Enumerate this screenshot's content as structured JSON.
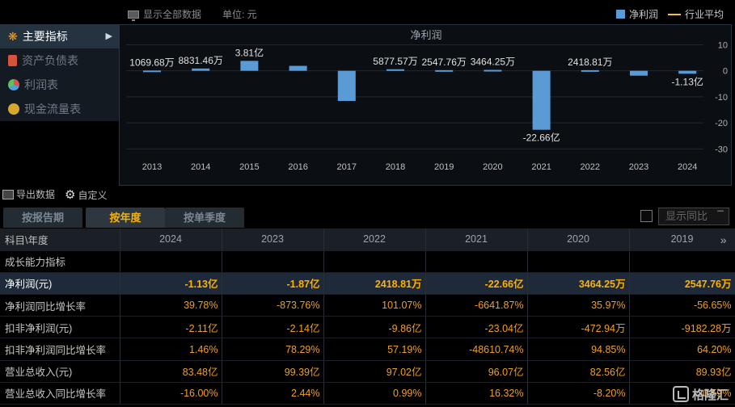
{
  "topbar": {
    "show_all": "显示全部数据",
    "unit_label": "单位: 元",
    "legend_series": "净利润",
    "legend_industry": "行业平均"
  },
  "sidebar": {
    "items": [
      {
        "label": "主要指标",
        "icon": "flower-icon",
        "active": true
      },
      {
        "label": "资产负债表",
        "icon": "document-icon",
        "active": false
      },
      {
        "label": "利润表",
        "icon": "pie-icon",
        "active": false
      },
      {
        "label": "现金流量表",
        "icon": "coins-icon",
        "active": false
      }
    ]
  },
  "chart_data": {
    "type": "bar",
    "title": "净利润",
    "categories": [
      "2013",
      "2014",
      "2015",
      "2016",
      "2017",
      "2018",
      "2019",
      "2020",
      "2021",
      "2022",
      "2023",
      "2024"
    ],
    "series": [
      {
        "name": "净利润",
        "unit": "亿",
        "values": [
          0.107,
          0.883,
          3.81,
          1.9,
          -11.6,
          0.588,
          0.255,
          0.346,
          -22.66,
          0.242,
          -1.87,
          -1.13
        ]
      }
    ],
    "data_labels": [
      "1069.68万",
      "8831.46万",
      "3.81亿",
      "",
      "",
      "5877.57万",
      "2547.76万",
      "3464.25万",
      "-22.66亿",
      "2418.81万",
      "",
      "-1.13亿"
    ],
    "y_ticks": [
      "10",
      "0",
      "-10",
      "-20",
      "-30"
    ],
    "ylim": [
      -33,
      12
    ],
    "grid": true,
    "bar_color": "#5b9bd5"
  },
  "toolbar": {
    "export_label": "导出数据",
    "custom_label": "自定义"
  },
  "tabs": [
    {
      "label": "按报告期",
      "active": false
    },
    {
      "label": "按年度",
      "active": true
    },
    {
      "label": "按单季度",
      "active": false
    }
  ],
  "yoy_select": "显示同比",
  "table": {
    "header_first": "科目\\年度",
    "years": [
      "2024",
      "2023",
      "2022",
      "2021",
      "2020",
      "2019"
    ],
    "rows": [
      {
        "label": "成长能力指标",
        "values": [
          "",
          "",
          "",
          "",
          "",
          ""
        ],
        "type": "group"
      },
      {
        "label": "净利润(元)",
        "values": [
          "-1.13亿",
          "-1.87亿",
          "2418.81万",
          "-22.66亿",
          "3464.25万",
          "2547.76万"
        ],
        "type": "hi"
      },
      {
        "label": "净利润同比增长率",
        "values": [
          "39.78%",
          "-873.76%",
          "101.07%",
          "-6641.87%",
          "35.97%",
          "-56.65%"
        ],
        "type": "normal"
      },
      {
        "label": "扣非净利润(元)",
        "values": [
          "-2.11亿",
          "-2.14亿",
          "-9.86亿",
          "-23.04亿",
          "-472.94万",
          "-9182.28万"
        ],
        "type": "normal"
      },
      {
        "label": "扣非净利润同比增长率",
        "values": [
          "1.46%",
          "78.29%",
          "57.19%",
          "-48610.74%",
          "94.85%",
          "64.20%"
        ],
        "type": "normal"
      },
      {
        "label": "营业总收入(元)",
        "values": [
          "83.48亿",
          "99.39亿",
          "97.02亿",
          "96.07亿",
          "82.56亿",
          "89.93亿"
        ],
        "type": "normal"
      },
      {
        "label": "营业总收入同比增长率",
        "values": [
          "-16.00%",
          "2.44%",
          "0.99%",
          "16.32%",
          "-8.20%",
          "-0.59%"
        ],
        "type": "normal"
      }
    ]
  },
  "watermark": "格隆汇"
}
